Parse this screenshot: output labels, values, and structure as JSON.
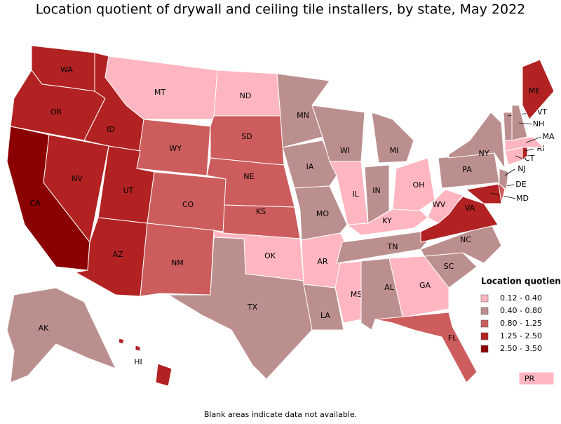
{
  "title": "Location quotient of drywall and ceiling tile installers, by state, May 2022",
  "legend": {
    "title": "Location quotient",
    "items": [
      {
        "label": "0.12 - 0.40",
        "color": "#ffb6c1"
      },
      {
        "label": "0.40 - 0.80",
        "color": "#bc8f8f"
      },
      {
        "label": "0.80 - 1.25",
        "color": "#cd5c5c"
      },
      {
        "label": "1.25 - 2.50",
        "color": "#b22222"
      },
      {
        "label": "2.50 - 3.50",
        "color": "#8b0000"
      }
    ]
  },
  "states": [
    {
      "label": "WA",
      "color": "#b22222"
    },
    {
      "label": "OR",
      "color": "#b22222"
    },
    {
      "label": "CA",
      "color": "#8b0000"
    },
    {
      "label": "NV",
      "color": "#b22222"
    },
    {
      "label": "ID",
      "color": "#b22222"
    },
    {
      "label": "MT",
      "color": "#ffb6c1"
    },
    {
      "label": "WY",
      "color": "#cd5c5c"
    },
    {
      "label": "UT",
      "color": "#b22222"
    },
    {
      "label": "AZ",
      "color": "#b22222"
    },
    {
      "label": "CO",
      "color": "#cd5c5c"
    },
    {
      "label": "NM",
      "color": "#cd5c5c"
    },
    {
      "label": "ND",
      "color": "#ffb6c1"
    },
    {
      "label": "SD",
      "color": "#cd5c5c"
    },
    {
      "label": "NE",
      "color": "#cd5c5c"
    },
    {
      "label": "KS",
      "color": "#cd5c5c"
    },
    {
      "label": "OK",
      "color": "#ffb6c1"
    },
    {
      "label": "TX",
      "color": "#bc8f8f"
    },
    {
      "label": "MN",
      "color": "#bc8f8f"
    },
    {
      "label": "IA",
      "color": "#bc8f8f"
    },
    {
      "label": "MO",
      "color": "#bc8f8f"
    },
    {
      "label": "AR",
      "color": "#ffb6c1"
    },
    {
      "label": "LA",
      "color": "#bc8f8f"
    },
    {
      "label": "WI",
      "color": "#bc8f8f"
    },
    {
      "label": "IL",
      "color": "#ffb6c1"
    },
    {
      "label": "MI",
      "color": "#bc8f8f"
    },
    {
      "label": "IN",
      "color": "#bc8f8f"
    },
    {
      "label": "OH",
      "color": "#ffb6c1"
    },
    {
      "label": "KY",
      "color": "#ffb6c1"
    },
    {
      "label": "TN",
      "color": "#bc8f8f"
    },
    {
      "label": "MS",
      "color": "#ffb6c1"
    },
    {
      "label": "AL",
      "color": "#bc8f8f"
    },
    {
      "label": "GA",
      "color": "#ffb6c1"
    },
    {
      "label": "FL",
      "color": "#cd5c5c"
    },
    {
      "label": "SC",
      "color": "#bc8f8f"
    },
    {
      "label": "NC",
      "color": "#bc8f8f"
    },
    {
      "label": "VA",
      "color": "#b22222"
    },
    {
      "label": "WV",
      "color": "#ffb6c1"
    },
    {
      "label": "MD",
      "color": "#b22222"
    },
    {
      "label": "DE",
      "color": "#cd5c5c"
    },
    {
      "label": "PA",
      "color": "#bc8f8f"
    },
    {
      "label": "NY",
      "color": "#bc8f8f"
    },
    {
      "label": "NJ",
      "color": "#bc8f8f"
    },
    {
      "label": "CT",
      "color": "#ffb6c1"
    },
    {
      "label": "RI",
      "color": "#b22222"
    },
    {
      "label": "MA",
      "color": "#ffb6c1"
    },
    {
      "label": "VT",
      "color": "#bc8f8f"
    },
    {
      "label": "NH",
      "color": "#bc8f8f"
    },
    {
      "label": "ME",
      "color": "#b22222"
    },
    {
      "label": "AK",
      "color": "#bc8f8f"
    },
    {
      "label": "HI",
      "color": "#b22222"
    },
    {
      "label": "PR",
      "color": "#ffb6c1"
    }
  ],
  "footnote": "Blank areas indicate data not available."
}
